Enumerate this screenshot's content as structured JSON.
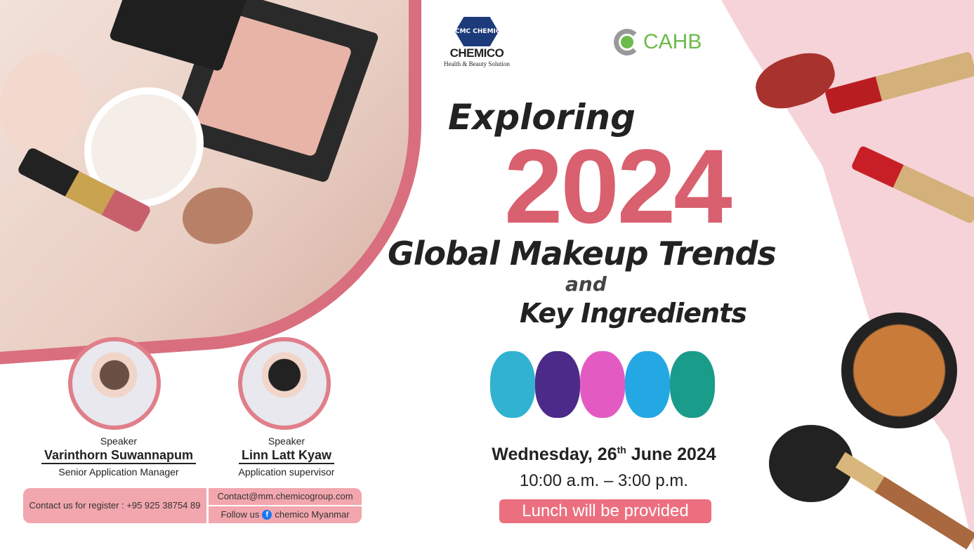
{
  "logos": {
    "chemico_mark": "CMC CHEMICO",
    "chemico": "CHEMICO",
    "chemico_tagline": "Health & Beauty Solution",
    "cahb": "CAHB"
  },
  "title": {
    "line1": "Exploring",
    "year": "2024",
    "line2": "Global Makeup Trends",
    "and": "and",
    "line3": "Key Ingredients"
  },
  "event": {
    "day": "Wednesday, 26",
    "sup": "th",
    "month_year": " June 2024",
    "time": "10:00 a.m. – 3:00 p.m.",
    "lunch": "Lunch will be provided"
  },
  "speakers": [
    {
      "role": "Speaker",
      "name": "Varinthorn Suwannapum",
      "title": "Senior Application Manager"
    },
    {
      "role": "Speaker",
      "name": "Linn Latt Kyaw",
      "title": "Application supervisor"
    }
  ],
  "contact": {
    "register": "Contact us for register : +95 925 38754 89",
    "email": "Contact@mm.chemicogroup.com",
    "follow_prefix": "Follow us",
    "facebook": "chemico Myanmar"
  },
  "colors": {
    "accent": "#d9606e",
    "pill": "#f2a6ad",
    "lunch_bg": "#ec6f80",
    "cahb_green": "#6dbb4a",
    "chemico_blue": "#1d3a7a"
  }
}
